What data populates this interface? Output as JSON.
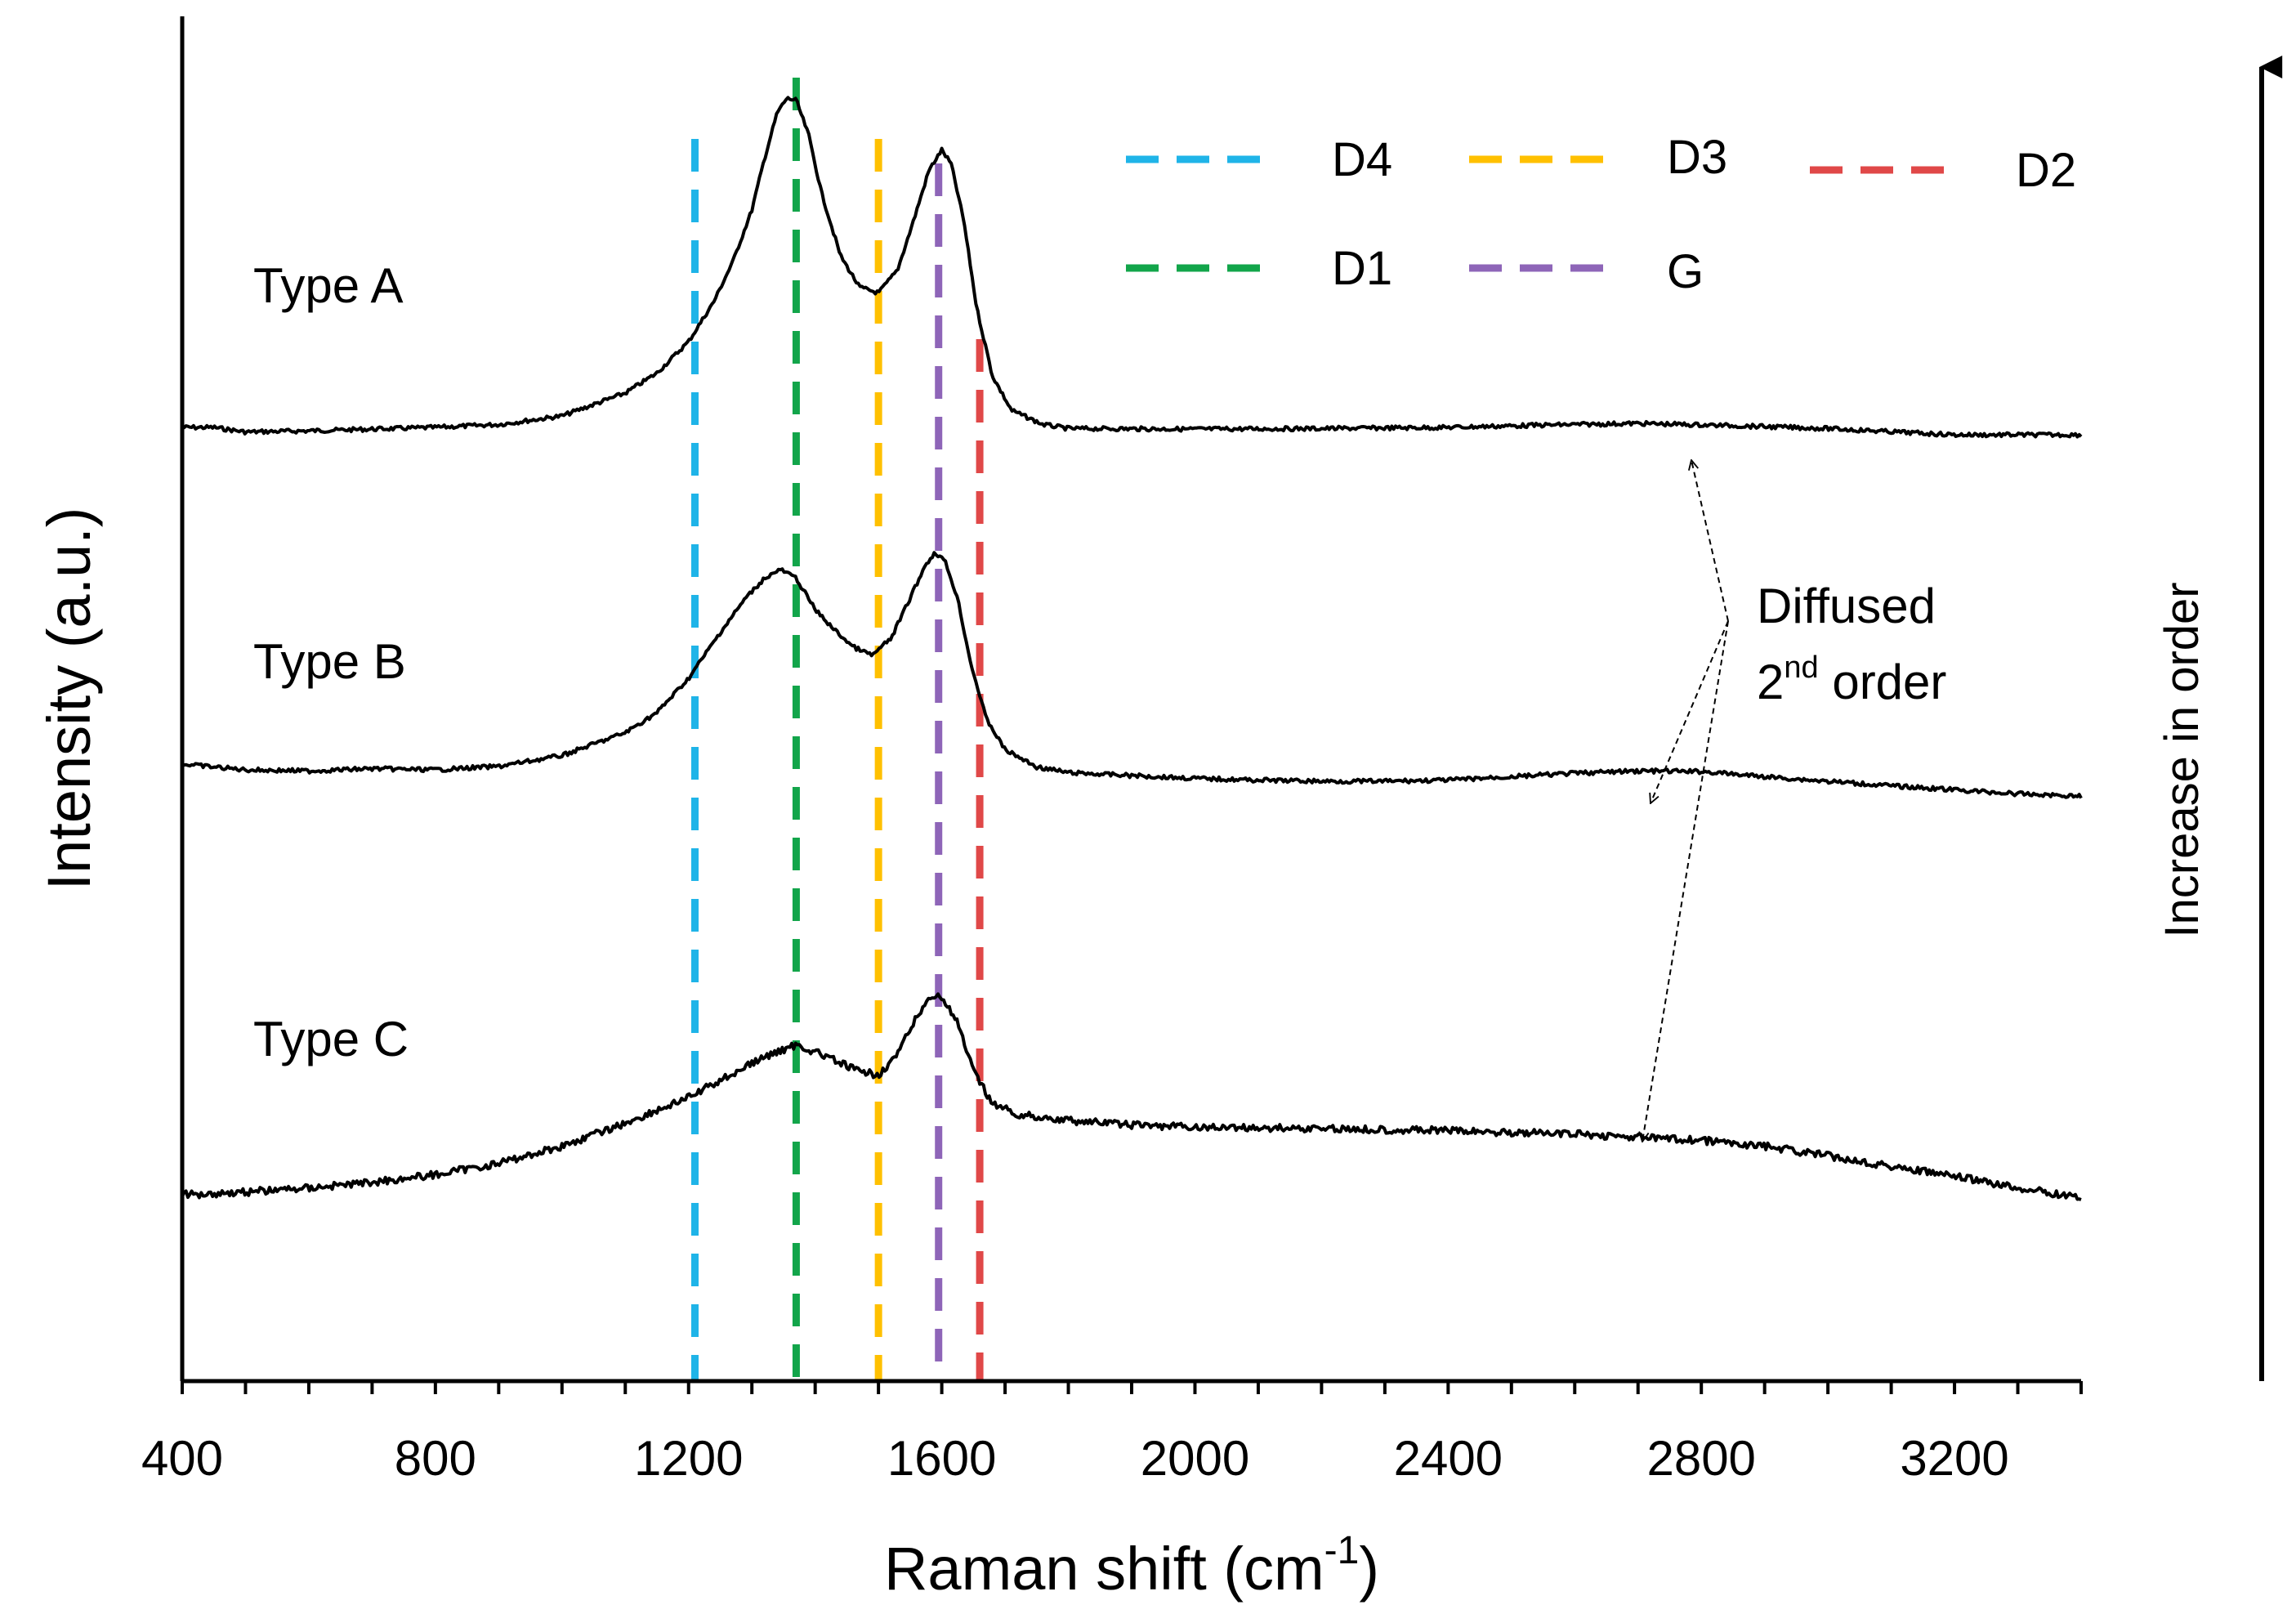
{
  "chart_data": {
    "type": "line",
    "title": "",
    "xlabel": "Raman shift (cm-1)",
    "xlabel_main": "Raman shift (cm",
    "xlabel_sup": "-1",
    "xlabel_close": ")",
    "ylabel": "Intensity (a.u.)",
    "xlim": [
      400,
      3400
    ],
    "xticks": [
      400,
      800,
      1200,
      1600,
      2000,
      2400,
      2800,
      3200
    ],
    "xtick_labels": [
      "400",
      "800",
      "1200",
      "1600",
      "2000",
      "2400",
      "2800",
      "3200"
    ],
    "series": [
      {
        "name": "Type A",
        "label": "Type A",
        "color": "#000000",
        "points": [
          [
            400,
            0.0
          ],
          [
            450,
            0.0
          ],
          [
            500,
            -0.08
          ],
          [
            600,
            -0.06
          ],
          [
            800,
            0.0
          ],
          [
            900,
            0.05
          ],
          [
            1000,
            0.2
          ],
          [
            1100,
            0.6
          ],
          [
            1150,
            0.95
          ],
          [
            1200,
            1.5
          ],
          [
            1240,
            2.2
          ],
          [
            1270,
            2.9
          ],
          [
            1300,
            3.8
          ],
          [
            1320,
            4.7
          ],
          [
            1340,
            5.5
          ],
          [
            1355,
            5.75
          ],
          [
            1370,
            5.72
          ],
          [
            1390,
            5.1
          ],
          [
            1410,
            4.1
          ],
          [
            1440,
            3.0
          ],
          [
            1470,
            2.45
          ],
          [
            1500,
            2.35
          ],
          [
            1530,
            2.75
          ],
          [
            1555,
            3.6
          ],
          [
            1580,
            4.5
          ],
          [
            1600,
            4.85
          ],
          [
            1615,
            4.6
          ],
          [
            1635,
            3.6
          ],
          [
            1655,
            2.1
          ],
          [
            1680,
            0.9
          ],
          [
            1710,
            0.3
          ],
          [
            1760,
            0.05
          ],
          [
            1800,
            -0.02
          ],
          [
            2000,
            -0.03
          ],
          [
            2200,
            -0.02
          ],
          [
            2400,
            0.0
          ],
          [
            2550,
            0.04
          ],
          [
            2700,
            0.07
          ],
          [
            2850,
            0.03
          ],
          [
            3000,
            -0.02
          ],
          [
            3200,
            -0.13
          ],
          [
            3400,
            -0.13
          ]
        ]
      },
      {
        "name": "Type B",
        "label": "Type B",
        "color": "#000000",
        "points": [
          [
            400,
            0.0
          ],
          [
            500,
            -0.1
          ],
          [
            600,
            -0.12
          ],
          [
            700,
            -0.08
          ],
          [
            800,
            -0.1
          ],
          [
            900,
            -0.04
          ],
          [
            1000,
            0.15
          ],
          [
            1100,
            0.55
          ],
          [
            1150,
            0.9
          ],
          [
            1200,
            1.5
          ],
          [
            1250,
            2.3
          ],
          [
            1290,
            2.9
          ],
          [
            1320,
            3.25
          ],
          [
            1345,
            3.4
          ],
          [
            1370,
            3.25
          ],
          [
            1400,
            2.7
          ],
          [
            1430,
            2.35
          ],
          [
            1460,
            2.05
          ],
          [
            1490,
            1.9
          ],
          [
            1520,
            2.2
          ],
          [
            1550,
            2.9
          ],
          [
            1575,
            3.5
          ],
          [
            1590,
            3.7
          ],
          [
            1605,
            3.55
          ],
          [
            1625,
            2.9
          ],
          [
            1645,
            1.8
          ],
          [
            1670,
            0.8
          ],
          [
            1700,
            0.25
          ],
          [
            1750,
            -0.05
          ],
          [
            1800,
            -0.15
          ],
          [
            1900,
            -0.2
          ],
          [
            2000,
            -0.25
          ],
          [
            2100,
            -0.28
          ],
          [
            2200,
            -0.3
          ],
          [
            2300,
            -0.3
          ],
          [
            2400,
            -0.28
          ],
          [
            2500,
            -0.22
          ],
          [
            2600,
            -0.16
          ],
          [
            2700,
            -0.12
          ],
          [
            2800,
            -0.13
          ],
          [
            2900,
            -0.22
          ],
          [
            3000,
            -0.3
          ],
          [
            3100,
            -0.38
          ],
          [
            3200,
            -0.45
          ],
          [
            3300,
            -0.52
          ],
          [
            3400,
            -0.56
          ]
        ]
      },
      {
        "name": "Type C",
        "label": "Type C",
        "color": "#000000",
        "points": [
          [
            400,
            0.0
          ],
          [
            500,
            0.05
          ],
          [
            600,
            0.12
          ],
          [
            700,
            0.22
          ],
          [
            800,
            0.35
          ],
          [
            900,
            0.55
          ],
          [
            1000,
            0.85
          ],
          [
            1100,
            1.25
          ],
          [
            1200,
            1.7
          ],
          [
            1250,
            2.0
          ],
          [
            1300,
            2.3
          ],
          [
            1340,
            2.5
          ],
          [
            1370,
            2.62
          ],
          [
            1400,
            2.5
          ],
          [
            1440,
            2.3
          ],
          [
            1470,
            2.15
          ],
          [
            1500,
            2.1
          ],
          [
            1530,
            2.45
          ],
          [
            1560,
            3.1
          ],
          [
            1585,
            3.5
          ],
          [
            1600,
            3.45
          ],
          [
            1625,
            3.0
          ],
          [
            1650,
            2.15
          ],
          [
            1680,
            1.6
          ],
          [
            1720,
            1.4
          ],
          [
            1800,
            1.3
          ],
          [
            1900,
            1.22
          ],
          [
            2000,
            1.18
          ],
          [
            2200,
            1.16
          ],
          [
            2400,
            1.12
          ],
          [
            2600,
            1.06
          ],
          [
            2800,
            0.95
          ],
          [
            2900,
            0.85
          ],
          [
            3000,
            0.68
          ],
          [
            3100,
            0.5
          ],
          [
            3200,
            0.32
          ],
          [
            3300,
            0.12
          ],
          [
            3400,
            -0.05
          ]
        ]
      }
    ],
    "band_lines": [
      {
        "name": "D4",
        "label": "D4",
        "x": 1210,
        "color": "#1FB4E8"
      },
      {
        "name": "D3",
        "label": "D3",
        "x": 1500,
        "color": "#FFC000"
      },
      {
        "name": "D2",
        "label": "D2",
        "x": 1660,
        "color": "#E04848"
      },
      {
        "name": "D1",
        "label": "D1",
        "x": 1370,
        "color": "#12A54A"
      },
      {
        "name": "G",
        "label": "G",
        "x": 1595,
        "color": "#8E65B8"
      }
    ],
    "legend": {
      "entries": [
        "D4",
        "D3",
        "D2",
        "D1",
        "G"
      ],
      "placement": "top-right"
    },
    "annotations": {
      "diffused_line1": "Diffused",
      "diffused_line2_num": "2",
      "diffused_line2_sup": "nd",
      "diffused_line2_rest": " order",
      "order_arrow_label": "Increase in order"
    }
  }
}
